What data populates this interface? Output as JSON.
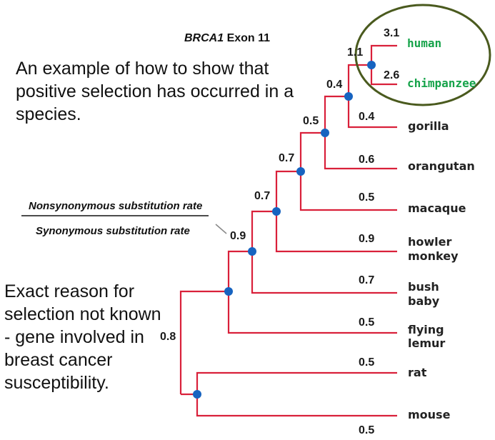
{
  "title": {
    "gene": "BRCA1",
    "rest": "Exon 11"
  },
  "note_top": [
    "An example of how to show that",
    "positive selection has occurred in a",
    "species."
  ],
  "note_left": [
    "Exact reason for",
    "selection not known",
    "- gene involved in",
    "breast cancer",
    "susceptibility."
  ],
  "ratio": {
    "numerator": "Nonsynonymous substitution rate",
    "denominator": "Synonymous substitution rate"
  },
  "taxa": {
    "human": "human",
    "chimpanzee": "chimpanzee",
    "gorilla": "gorilla",
    "orangutan": "orangutan",
    "macaque": "macaque",
    "howler": [
      "howler",
      "monkey"
    ],
    "bush": [
      "bush",
      "baby"
    ],
    "flying": [
      "flying",
      "lemur"
    ],
    "rat": "rat",
    "mouse": "mouse"
  },
  "rates": {
    "human": "3.1",
    "chimpanzee": "2.6",
    "human_chimp_clade": "1.1",
    "gorilla": "0.4",
    "hominine_clade": "0.4",
    "orangutan": "0.6",
    "hominid_clade": "0.5",
    "macaque": "0.5",
    "catarrhine_clade": "0.7",
    "howler_monkey": "0.9",
    "anthropoid_clade": "0.7",
    "bush_baby": "0.7",
    "primate_clade": "0.9",
    "flying_lemur": "0.5",
    "rat": "0.5",
    "mouse": "0.5",
    "root": "0.8"
  },
  "colors": {
    "branch": "#d9203a",
    "node": "#1763c0",
    "highlight_text": "#16a34a",
    "highlight_ellipse": "#4a5a1e"
  }
}
